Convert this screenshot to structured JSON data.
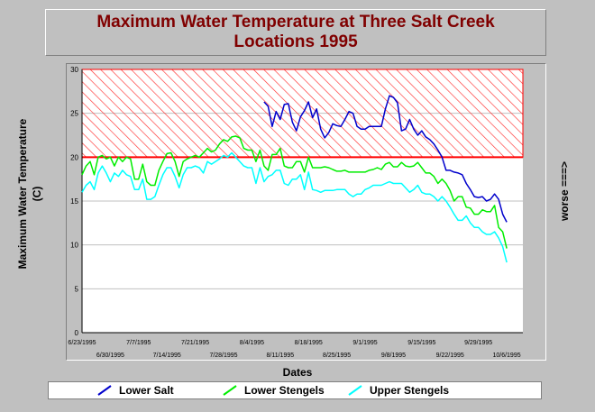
{
  "chart_data": {
    "type": "line",
    "title_lines": [
      "Maximum Water Temperature at Three Salt Creek",
      "Locations 1995"
    ],
    "xlabel": "Dates",
    "ylabel_lines": [
      "Maximum Water Temperature",
      "(C)"
    ],
    "side_note": "worse ===>",
    "ylim": [
      0,
      30
    ],
    "yticks": [
      0,
      5,
      10,
      15,
      20,
      25,
      30
    ],
    "threshold": 20,
    "threshold_color": "#ff0000",
    "x_start_day": 0,
    "x_end_day": 109,
    "xticks_upper": [
      {
        "day": 0,
        "label": "6/23/1995"
      },
      {
        "day": 14,
        "label": "7/7/1995"
      },
      {
        "day": 28,
        "label": "7/21/1995"
      },
      {
        "day": 42,
        "label": "8/4/1995"
      },
      {
        "day": 56,
        "label": "8/18/1995"
      },
      {
        "day": 70,
        "label": "9/1/1995"
      },
      {
        "day": 84,
        "label": "9/15/1995"
      },
      {
        "day": 98,
        "label": "9/29/1995"
      }
    ],
    "xticks_lower": [
      {
        "day": 7,
        "label": "6/30/1995"
      },
      {
        "day": 21,
        "label": "7/14/1995"
      },
      {
        "day": 35,
        "label": "7/28/1995"
      },
      {
        "day": 49,
        "label": "8/11/1995"
      },
      {
        "day": 63,
        "label": "8/25/1995"
      },
      {
        "day": 77,
        "label": "9/8/1995"
      },
      {
        "day": 91,
        "label": "9/22/1995"
      },
      {
        "day": 105,
        "label": "10/6/1995"
      }
    ],
    "series": [
      {
        "name": "Lower Salt",
        "color": "#0000cc",
        "points": [
          [
            45,
            26.3
          ],
          [
            46,
            25.8
          ],
          [
            47,
            23.5
          ],
          [
            48,
            25.2
          ],
          [
            49,
            24.3
          ],
          [
            50,
            26.0
          ],
          [
            51,
            26.1
          ],
          [
            52,
            24.0
          ],
          [
            53,
            23.0
          ],
          [
            54,
            24.6
          ],
          [
            55,
            25.3
          ],
          [
            56,
            26.3
          ],
          [
            57,
            24.5
          ],
          [
            58,
            25.5
          ],
          [
            59,
            23.2
          ],
          [
            60,
            22.2
          ],
          [
            61,
            22.8
          ],
          [
            62,
            23.8
          ],
          [
            63,
            23.6
          ],
          [
            64,
            23.5
          ],
          [
            65,
            24.3
          ],
          [
            66,
            25.2
          ],
          [
            67,
            25.0
          ],
          [
            68,
            23.5
          ],
          [
            69,
            23.2
          ],
          [
            70,
            23.2
          ],
          [
            71,
            23.5
          ],
          [
            72,
            23.5
          ],
          [
            73,
            23.5
          ],
          [
            74,
            23.5
          ],
          [
            75,
            25.5
          ],
          [
            76,
            27.0
          ],
          [
            77,
            26.8
          ],
          [
            78,
            26.2
          ],
          [
            79,
            23.0
          ],
          [
            80,
            23.2
          ],
          [
            81,
            24.3
          ],
          [
            82,
            23.2
          ],
          [
            83,
            22.5
          ],
          [
            84,
            23.0
          ],
          [
            85,
            22.3
          ],
          [
            86,
            22.0
          ],
          [
            87,
            21.5
          ],
          [
            88,
            20.8
          ],
          [
            89,
            20.0
          ],
          [
            90,
            18.5
          ],
          [
            91,
            18.5
          ],
          [
            92,
            18.3
          ],
          [
            93,
            18.2
          ],
          [
            94,
            18.0
          ],
          [
            95,
            17.0
          ],
          [
            96,
            16.3
          ],
          [
            97,
            15.5
          ],
          [
            98,
            15.4
          ],
          [
            99,
            15.5
          ],
          [
            100,
            15.0
          ],
          [
            101,
            15.2
          ],
          [
            102,
            15.8
          ],
          [
            103,
            15.2
          ],
          [
            104,
            13.5
          ],
          [
            105,
            12.6
          ]
        ]
      },
      {
        "name": "Lower Stengels",
        "color": "#00ee00",
        "points": [
          [
            0,
            18.0
          ],
          [
            1,
            19.0
          ],
          [
            2,
            19.5
          ],
          [
            3,
            18.0
          ],
          [
            4,
            20.0
          ],
          [
            5,
            20.2
          ],
          [
            6,
            19.8
          ],
          [
            7,
            20.0
          ],
          [
            8,
            19.0
          ],
          [
            9,
            20.0
          ],
          [
            10,
            19.5
          ],
          [
            11,
            20.0
          ],
          [
            12,
            19.8
          ],
          [
            13,
            17.5
          ],
          [
            14,
            17.5
          ],
          [
            15,
            19.2
          ],
          [
            16,
            17.2
          ],
          [
            17,
            16.8
          ],
          [
            18,
            16.8
          ],
          [
            19,
            18.5
          ],
          [
            20,
            19.5
          ],
          [
            21,
            20.4
          ],
          [
            22,
            20.5
          ],
          [
            23,
            19.5
          ],
          [
            24,
            17.8
          ],
          [
            25,
            19.5
          ],
          [
            26,
            19.8
          ],
          [
            27,
            20.0
          ],
          [
            28,
            20.2
          ],
          [
            29,
            20.0
          ],
          [
            30,
            20.5
          ],
          [
            31,
            21.0
          ],
          [
            32,
            20.6
          ],
          [
            33,
            20.8
          ],
          [
            34,
            21.5
          ],
          [
            35,
            22.0
          ],
          [
            36,
            21.8
          ],
          [
            37,
            22.3
          ],
          [
            38,
            22.4
          ],
          [
            39,
            22.2
          ],
          [
            40,
            21.0
          ],
          [
            41,
            20.8
          ],
          [
            42,
            20.8
          ],
          [
            43,
            19.5
          ],
          [
            44,
            20.8
          ],
          [
            45,
            19.0
          ],
          [
            46,
            18.5
          ],
          [
            47,
            20.3
          ],
          [
            48,
            20.3
          ],
          [
            49,
            21.0
          ],
          [
            50,
            19.0
          ],
          [
            51,
            18.8
          ],
          [
            52,
            18.8
          ],
          [
            53,
            19.5
          ],
          [
            54,
            19.5
          ],
          [
            55,
            18.3
          ],
          [
            56,
            20.0
          ],
          [
            57,
            18.8
          ],
          [
            58,
            18.8
          ],
          [
            59,
            18.8
          ],
          [
            60,
            18.9
          ],
          [
            61,
            18.8
          ],
          [
            62,
            18.6
          ],
          [
            63,
            18.4
          ],
          [
            64,
            18.4
          ],
          [
            65,
            18.5
          ],
          [
            66,
            18.3
          ],
          [
            67,
            18.3
          ],
          [
            68,
            18.3
          ],
          [
            69,
            18.3
          ],
          [
            70,
            18.3
          ],
          [
            71,
            18.5
          ],
          [
            72,
            18.6
          ],
          [
            73,
            18.8
          ],
          [
            74,
            18.6
          ],
          [
            75,
            19.2
          ],
          [
            76,
            19.4
          ],
          [
            77,
            18.9
          ],
          [
            78,
            18.9
          ],
          [
            79,
            19.4
          ],
          [
            80,
            19.0
          ],
          [
            81,
            18.9
          ],
          [
            82,
            19.0
          ],
          [
            83,
            19.4
          ],
          [
            84,
            18.8
          ],
          [
            85,
            18.2
          ],
          [
            86,
            18.2
          ],
          [
            87,
            17.8
          ],
          [
            88,
            17.0
          ],
          [
            89,
            17.5
          ],
          [
            90,
            17.0
          ],
          [
            91,
            16.2
          ],
          [
            92,
            15.0
          ],
          [
            93,
            15.5
          ],
          [
            94,
            15.5
          ],
          [
            95,
            14.3
          ],
          [
            96,
            14.2
          ],
          [
            97,
            13.5
          ],
          [
            98,
            13.5
          ],
          [
            99,
            14.0
          ],
          [
            100,
            13.8
          ],
          [
            101,
            13.8
          ],
          [
            102,
            14.5
          ],
          [
            103,
            12.0
          ],
          [
            104,
            11.5
          ],
          [
            105,
            9.6
          ]
        ]
      },
      {
        "name": "Upper Stengels",
        "color": "#00ffff",
        "points": [
          [
            0,
            16.0
          ],
          [
            1,
            16.8
          ],
          [
            2,
            17.2
          ],
          [
            3,
            16.3
          ],
          [
            4,
            18.2
          ],
          [
            5,
            19.0
          ],
          [
            6,
            18.2
          ],
          [
            7,
            17.2
          ],
          [
            8,
            18.2
          ],
          [
            9,
            17.8
          ],
          [
            10,
            18.5
          ],
          [
            11,
            18.0
          ],
          [
            12,
            17.8
          ],
          [
            13,
            16.3
          ],
          [
            14,
            16.3
          ],
          [
            15,
            17.5
          ],
          [
            16,
            15.2
          ],
          [
            17,
            15.2
          ],
          [
            18,
            15.5
          ],
          [
            19,
            16.8
          ],
          [
            20,
            18.0
          ],
          [
            21,
            18.8
          ],
          [
            22,
            18.8
          ],
          [
            23,
            17.8
          ],
          [
            24,
            16.5
          ],
          [
            25,
            18.0
          ],
          [
            26,
            18.8
          ],
          [
            27,
            18.8
          ],
          [
            28,
            19.0
          ],
          [
            29,
            18.8
          ],
          [
            30,
            18.2
          ],
          [
            31,
            19.5
          ],
          [
            32,
            19.2
          ],
          [
            33,
            19.5
          ],
          [
            34,
            19.8
          ],
          [
            35,
            20.2
          ],
          [
            36,
            20.0
          ],
          [
            37,
            20.5
          ],
          [
            38,
            20.0
          ],
          [
            39,
            19.5
          ],
          [
            40,
            19.0
          ],
          [
            41,
            18.8
          ],
          [
            42,
            18.8
          ],
          [
            43,
            17.0
          ],
          [
            44,
            18.8
          ],
          [
            45,
            17.2
          ],
          [
            46,
            17.8
          ],
          [
            47,
            18.0
          ],
          [
            48,
            18.5
          ],
          [
            49,
            18.5
          ],
          [
            50,
            17.0
          ],
          [
            51,
            16.8
          ],
          [
            52,
            17.5
          ],
          [
            53,
            17.5
          ],
          [
            54,
            18.0
          ],
          [
            55,
            16.3
          ],
          [
            56,
            18.3
          ],
          [
            57,
            16.3
          ],
          [
            58,
            16.2
          ],
          [
            59,
            16.0
          ],
          [
            60,
            16.2
          ],
          [
            61,
            16.2
          ],
          [
            62,
            16.2
          ],
          [
            63,
            16.3
          ],
          [
            64,
            16.3
          ],
          [
            65,
            16.3
          ],
          [
            66,
            15.8
          ],
          [
            67,
            15.5
          ],
          [
            68,
            15.8
          ],
          [
            69,
            15.8
          ],
          [
            70,
            16.3
          ],
          [
            71,
            16.5
          ],
          [
            72,
            16.8
          ],
          [
            73,
            16.8
          ],
          [
            74,
            16.8
          ],
          [
            75,
            17.0
          ],
          [
            76,
            17.2
          ],
          [
            77,
            17.0
          ],
          [
            78,
            17.0
          ],
          [
            79,
            17.0
          ],
          [
            80,
            16.5
          ],
          [
            81,
            16.0
          ],
          [
            82,
            16.3
          ],
          [
            83,
            16.8
          ],
          [
            84,
            16.0
          ],
          [
            85,
            15.8
          ],
          [
            86,
            15.8
          ],
          [
            87,
            15.5
          ],
          [
            88,
            15.0
          ],
          [
            89,
            15.5
          ],
          [
            90,
            15.0
          ],
          [
            91,
            14.3
          ],
          [
            92,
            13.5
          ],
          [
            93,
            12.8
          ],
          [
            94,
            12.8
          ],
          [
            95,
            13.3
          ],
          [
            96,
            12.5
          ],
          [
            97,
            12.0
          ],
          [
            98,
            12.0
          ],
          [
            99,
            11.5
          ],
          [
            100,
            11.2
          ],
          [
            101,
            11.2
          ],
          [
            102,
            11.5
          ],
          [
            103,
            10.8
          ],
          [
            104,
            9.8
          ],
          [
            105,
            8.0
          ]
        ]
      }
    ]
  }
}
